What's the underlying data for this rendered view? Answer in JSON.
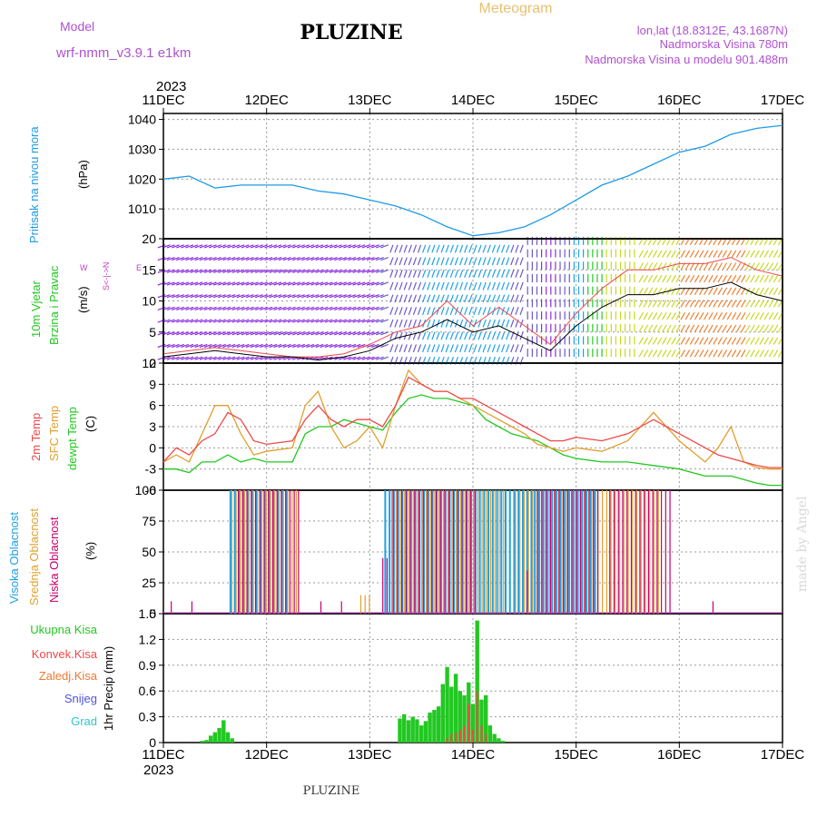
{
  "header": {
    "meteogram": "Meteogram",
    "model_label": "Model",
    "model_name": "wrf-nmm_v3.9.1  e1km",
    "station": "PLUZINE",
    "lonlat": "lon,lat (18.8312E, 43.1687N)",
    "elevation": "Nadmorska Visina 780m",
    "model_elevation": "Nadmorska Visina u modelu 901.488m"
  },
  "footer": {
    "station": "PLUZINE",
    "credit": "made by Angel"
  },
  "time_axis": {
    "year": "2023",
    "ticks": [
      "11DEC",
      "12DEC",
      "13DEC",
      "14DEC",
      "15DEC",
      "16DEC",
      "17DEC"
    ]
  },
  "colors": {
    "pressure": "#1e9be6",
    "temp2m": "#f04848",
    "sfc_temp": "#e0a030",
    "dewpt": "#22c822",
    "high_cloud": "#1ea0e6",
    "mid_cloud": "#e0a030",
    "low_cloud": "#c8006e",
    "total_precip": "#22c822",
    "conv_precip": "#f04848",
    "frozen_precip": "#f07830",
    "snow": "#5050e0",
    "graupel": "#30c8c8",
    "wind_mean": "#000000",
    "wind_gust": "#f04848",
    "wind_label": "#22c822",
    "wind_dir_label": "#c040c0"
  },
  "chart_data": [
    {
      "type": "line",
      "panel": "pressure",
      "ylabel": "Pritisak na nivou mora",
      "unit": "(hPa)",
      "ylim": [
        1000,
        1042
      ],
      "yticks": [
        1010,
        1020,
        1030,
        1040
      ],
      "grid": true,
      "x_days": [
        0,
        0.25,
        0.5,
        0.75,
        1,
        1.25,
        1.5,
        1.75,
        2,
        2.25,
        2.5,
        2.75,
        3,
        3.25,
        3.5,
        3.75,
        4,
        4.25,
        4.5,
        4.75,
        5,
        5.25,
        5.5,
        5.75,
        6
      ],
      "series": [
        {
          "name": "Pritisak na nivou mora",
          "values": [
            1020,
            1021,
            1017,
            1018,
            1018,
            1018,
            1016,
            1015,
            1013,
            1011,
            1008,
            1004,
            1001,
            1002,
            1004,
            1008,
            1013,
            1018,
            1021,
            1025,
            1029,
            1031,
            1035,
            1037,
            1038
          ]
        }
      ]
    },
    {
      "type": "line",
      "panel": "wind",
      "ylabel": "10m Vjetar Brzina i Pravac",
      "unit": "(m/s)",
      "ylim": [
        0,
        20
      ],
      "yticks": [
        0,
        5,
        10,
        15,
        20
      ],
      "grid": true,
      "direction_key": {
        "north": "N",
        "east": "E",
        "west": "W",
        "south": "S"
      },
      "x_days": [
        0,
        0.25,
        0.5,
        0.75,
        1,
        1.25,
        1.5,
        1.75,
        2,
        2.25,
        2.5,
        2.75,
        3,
        3.25,
        3.5,
        3.75,
        4,
        4.25,
        4.5,
        4.75,
        5,
        5.25,
        5.5,
        5.75,
        6
      ],
      "series": [
        {
          "name": "mean",
          "values": [
            1,
            1.5,
            2,
            1.5,
            1,
            1,
            0.5,
            1,
            2,
            4,
            5,
            7,
            5,
            6,
            4,
            2,
            6,
            9,
            11,
            11,
            12,
            12,
            13,
            11,
            10
          ]
        },
        {
          "name": "gust",
          "values": [
            1.5,
            2,
            2.5,
            2,
            1.5,
            1,
            1,
            1.5,
            3,
            5,
            6,
            10,
            6,
            9,
            6,
            3,
            8,
            12,
            15,
            15,
            16,
            16,
            17,
            15,
            14
          ]
        }
      ]
    },
    {
      "type": "line",
      "panel": "temperature",
      "ylabel": "2m Temp / SFC Temp / dewpt Temp",
      "unit": "(C)",
      "ylim": [
        -6,
        12
      ],
      "yticks": [
        -6,
        -3,
        0,
        3,
        6,
        9,
        12
      ],
      "grid": true,
      "x_days": [
        0,
        0.125,
        0.25,
        0.375,
        0.5,
        0.625,
        0.75,
        0.875,
        1,
        1.25,
        1.375,
        1.5,
        1.625,
        1.75,
        1.875,
        2,
        2.125,
        2.25,
        2.375,
        2.5,
        2.625,
        2.75,
        2.875,
        3,
        3.125,
        3.25,
        3.375,
        3.5,
        3.625,
        3.75,
        3.875,
        4,
        4.25,
        4.5,
        4.75,
        5,
        5.25,
        5.375,
        5.5,
        5.625,
        5.75,
        5.875,
        6
      ],
      "series": [
        {
          "name": "2m Temp",
          "values": [
            -2,
            0,
            -1,
            1,
            2,
            5,
            4,
            1,
            0.5,
            1,
            4,
            6,
            4,
            3,
            4,
            4,
            3,
            6,
            10,
            9,
            8,
            8,
            7,
            7,
            6,
            5,
            4,
            3,
            2,
            1,
            1,
            1.5,
            1,
            2,
            4,
            2,
            0,
            -1,
            -1.5,
            -2,
            -2.5,
            -2.8,
            -2.8
          ]
        },
        {
          "name": "SFC Temp",
          "values": [
            -2,
            -1,
            -2,
            2,
            6,
            6,
            2,
            -1,
            -0.5,
            0,
            6,
            8,
            3,
            0,
            1,
            3,
            0,
            6,
            11,
            9,
            8,
            8,
            7,
            6,
            5,
            4,
            3,
            2,
            0.5,
            0,
            -0.5,
            0,
            -0.5,
            1,
            5,
            1,
            -2,
            0,
            3,
            -2,
            -2.8,
            -3,
            -3
          ]
        },
        {
          "name": "dewpt Temp",
          "values": [
            -3,
            -3,
            -3.5,
            -2,
            -2,
            -1,
            -2,
            -1.5,
            -2,
            -2,
            2,
            3,
            3,
            4,
            3.5,
            3,
            2.5,
            5,
            7,
            7.5,
            7,
            7,
            6.5,
            6,
            4,
            3,
            2,
            1.5,
            1,
            0,
            -1,
            -1.5,
            -2,
            -2,
            -2.5,
            -3,
            -4,
            -4,
            -4,
            -4.5,
            -5,
            -5.3,
            -5.3
          ]
        }
      ]
    },
    {
      "type": "bar",
      "panel": "cloud",
      "ylabel": "Visoka Oblacnost / Srednja Oblacnost / Niska Oblacnost",
      "unit": "(%)",
      "ylim": [
        0,
        100
      ],
      "yticks": [
        0,
        25,
        50,
        75,
        100
      ],
      "grid": true,
      "series": [
        {
          "name": "Visoka Oblacnost",
          "spans": [
            [
              0.65,
              1.2,
              100
            ],
            [
              2.15,
              3.6,
              100
            ],
            [
              3.6,
              4.2,
              100
            ]
          ]
        },
        {
          "name": "Srednja Oblacnost",
          "spans": [
            [
              0.65,
              1.3,
              100
            ],
            [
              1.9,
              2.0,
              15
            ],
            [
              2.2,
              3.3,
              100
            ],
            [
              3.4,
              4.15,
              100
            ],
            [
              4.2,
              4.8,
              100
            ]
          ]
        },
        {
          "name": "Niska Oblacnost",
          "spans": [
            [
              0.05,
              0.05,
              10
            ],
            [
              0.25,
              0.25,
              10
            ],
            [
              0.7,
              1.3,
              100
            ],
            [
              1.5,
              1.5,
              10
            ],
            [
              1.7,
              1.7,
              10
            ],
            [
              2.1,
              2.15,
              45
            ],
            [
              2.2,
              3.0,
              100
            ],
            [
              3.5,
              3.5,
              35
            ],
            [
              3.6,
              4.2,
              100
            ],
            [
              4.3,
              4.9,
              100
            ],
            [
              5.3,
              5.3,
              10
            ]
          ]
        }
      ]
    },
    {
      "type": "bar",
      "panel": "precipitation",
      "ylabel": "1hr Precip",
      "unit": "(mm)",
      "ylim": [
        0,
        1.5
      ],
      "yticks": [
        0,
        0.3,
        0.6,
        0.9,
        1.2,
        1.5
      ],
      "grid": true,
      "legend": [
        "Ukupna  Kisa",
        "Konvek.Kisa",
        "Zaledj.Kisa",
        "Snijeg",
        "Grad"
      ],
      "x_hours": [
        9,
        10,
        11,
        12,
        13,
        14,
        15,
        16,
        17,
        18,
        19,
        55,
        56,
        57,
        58,
        59,
        60,
        61,
        62,
        63,
        64,
        65,
        66,
        67,
        68,
        69,
        70,
        71,
        72,
        73,
        74,
        75,
        76,
        77,
        78,
        79,
        80,
        81,
        82
      ],
      "series": [
        {
          "name": "Ukupna  Kisa",
          "values": [
            0.02,
            0.03,
            0.08,
            0.12,
            0.17,
            0.26,
            0.12,
            0.05,
            0,
            0,
            0,
            0.28,
            0.33,
            0.26,
            0.3,
            0.27,
            0.2,
            0.25,
            0.35,
            0.38,
            0.42,
            0.68,
            0.88,
            0.65,
            0.8,
            0.6,
            0.55,
            0.7,
            0.45,
            1.42,
            0.5,
            0.55,
            0.2,
            0.1,
            0.05,
            0.02,
            0,
            0,
            0
          ]
        },
        {
          "name": "Konvek.Kisa",
          "values": [
            0,
            0,
            0,
            0,
            0,
            0,
            0,
            0,
            0,
            0,
            0,
            0,
            0,
            0,
            0,
            0,
            0,
            0,
            0,
            0,
            0,
            0,
            0.05,
            0.1,
            0.12,
            0.15,
            0.2,
            0.45,
            0.15,
            0.6,
            0.2,
            0.1,
            0,
            0,
            0,
            0,
            0,
            0,
            0
          ]
        }
      ]
    }
  ]
}
